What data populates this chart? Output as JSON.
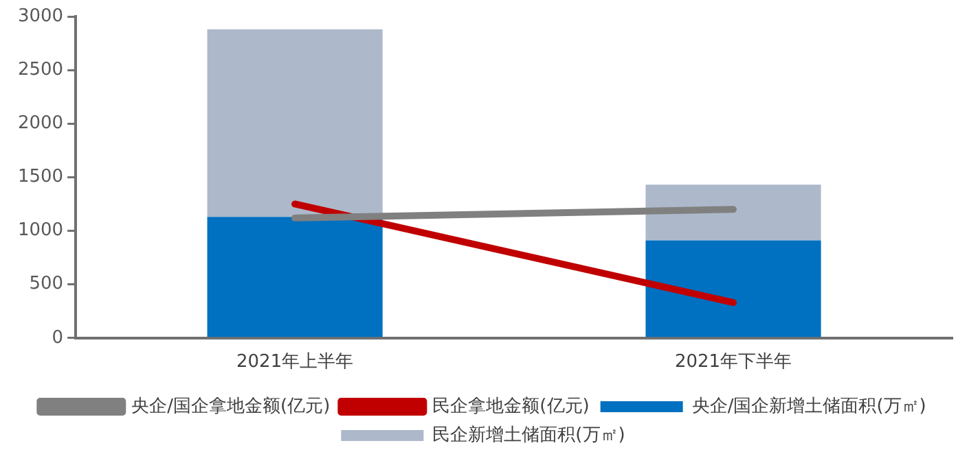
{
  "chart_data": {
    "type": "bar",
    "stacked": true,
    "categories": [
      "2021年上半年",
      "2021年下半年"
    ],
    "series": [
      {
        "name": "央企/国企新增土储面积(万㎡)",
        "color": "#0070c0",
        "values": [
          1130,
          910
        ]
      },
      {
        "name": "民企新增土储面积(万㎡)",
        "color": "#adb9ca",
        "values": [
          1750,
          520
        ]
      },
      {
        "name": "央企/国企拿地金额(亿元)",
        "type": "line",
        "color": "#808080",
        "values": [
          1120,
          1200
        ]
      },
      {
        "name": "民企拿地金额(亿元)",
        "type": "line",
        "color": "#c00000",
        "values": [
          1250,
          330
        ]
      }
    ],
    "ylim": [
      0,
      3000
    ],
    "yticks": [
      0,
      500,
      1000,
      1500,
      2000,
      2500,
      3000
    ],
    "grid": false,
    "legend": "bottom",
    "marker": "none",
    "line_style": "solid"
  }
}
